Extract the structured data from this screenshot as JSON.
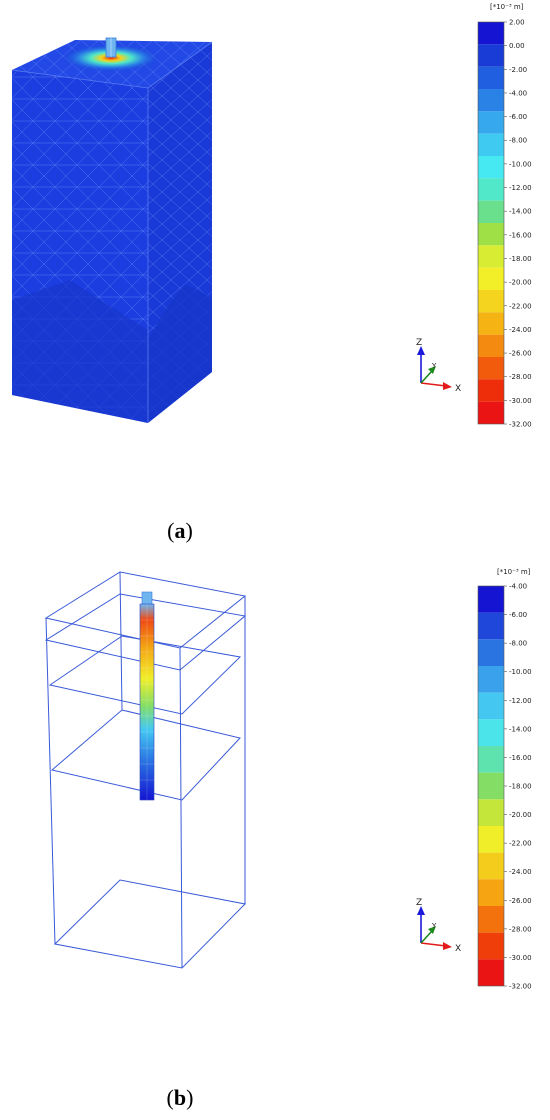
{
  "panels": [
    {
      "id": "a",
      "caption_letter": "a",
      "legend": {
        "unit": "[*10⁻³ m]",
        "labels": [
          "2.00",
          "0.00",
          "-2.00",
          "-4.00",
          "-6.00",
          "-8.00",
          "-10.00",
          "-12.00",
          "-14.00",
          "-16.00",
          "-18.00",
          "-20.00",
          "-22.00",
          "-24.00",
          "-26.00",
          "-28.00",
          "-30.00",
          "-32.00"
        ],
        "colors": [
          "#1414d2",
          "#1a3cd6",
          "#1f5fe0",
          "#2a82e6",
          "#36a8ee",
          "#3fcaf2",
          "#46e8f2",
          "#50e8c8",
          "#6ae08c",
          "#9ee046",
          "#d8ec34",
          "#f2ee28",
          "#f4d41e",
          "#f6b414",
          "#f48a10",
          "#f25a0c",
          "#ee2e0a",
          "#ea1414"
        ]
      },
      "axes": {
        "z": "Z",
        "y": "Y",
        "x": "X"
      }
    },
    {
      "id": "b",
      "caption_letter": "b",
      "legend": {
        "unit": "[*10⁻³ m]",
        "labels": [
          "-4.00",
          "-6.00",
          "-8.00",
          "-10.00",
          "-12.00",
          "-14.00",
          "-16.00",
          "-18.00",
          "-20.00",
          "-22.00",
          "-24.00",
          "-26.00",
          "-28.00",
          "-30.00",
          "-32.00"
        ],
        "colors": [
          "#1414d2",
          "#1f48da",
          "#2a74e2",
          "#3aa2ec",
          "#44c8f2",
          "#4ae4ea",
          "#5ee2ae",
          "#84de66",
          "#c4e63a",
          "#f0ee28",
          "#f4cc1c",
          "#f6a412",
          "#f4720e",
          "#f03e0a",
          "#ea1414"
        ]
      },
      "axes": {
        "z": "Z",
        "y": "Y",
        "x": "X"
      }
    }
  ]
}
